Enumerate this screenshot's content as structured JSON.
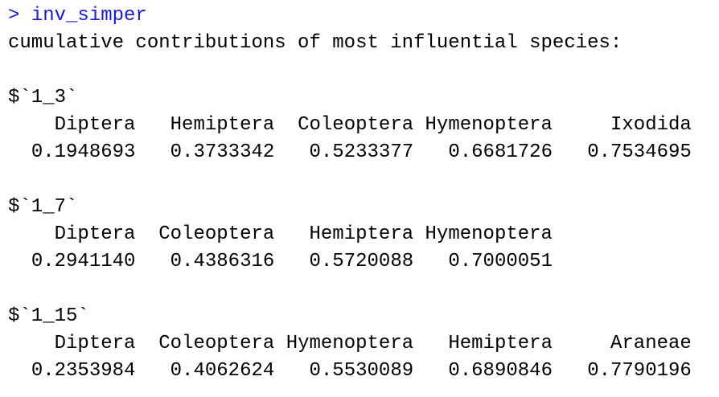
{
  "console": {
    "prompt": ">",
    "command": "inv_simper",
    "header": "cumulative contributions of most influential species:",
    "sections": [
      {
        "label": "$`1_3`",
        "names": [
          "Diptera",
          "Hemiptera",
          "Coleoptera",
          "Hymenoptera",
          "Ixodida"
        ],
        "values": [
          "0.1948693",
          "0.3733342",
          "0.5233377",
          "0.6681726",
          "0.7534695"
        ]
      },
      {
        "label": "$`1_7`",
        "names": [
          "Diptera",
          "Coleoptera",
          "Hemiptera",
          "Hymenoptera"
        ],
        "values": [
          "0.2941140",
          "0.4386316",
          "0.5720088",
          "0.7000051"
        ]
      },
      {
        "label": "$`1_15`",
        "names": [
          "Diptera",
          "Coleoptera",
          "Hymenoptera",
          "Hemiptera",
          "Araneae"
        ],
        "values": [
          "0.2353984",
          "0.4062624",
          "0.5530089",
          "0.6890846",
          "0.7790196"
        ]
      }
    ]
  }
}
